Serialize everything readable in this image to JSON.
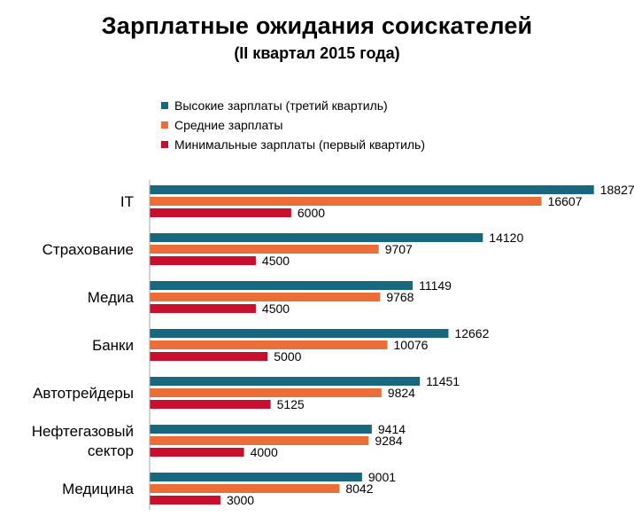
{
  "chart_data": {
    "type": "bar",
    "orientation": "horizontal",
    "title": "Зарплатные ожидания соискателей",
    "subtitle": "(II квартал 2015 года)",
    "categories": [
      [
        "IT"
      ],
      [
        "Страхование"
      ],
      [
        "Медиа"
      ],
      [
        "Банки"
      ],
      [
        "Автотрейдеры"
      ],
      [
        "Нефтегазовый",
        "сектор"
      ],
      [
        "Медицина"
      ]
    ],
    "series": [
      {
        "name": "Высокие зарплаты (третий квартиль)",
        "color": "#17687E",
        "values": [
          18827,
          14120,
          11149,
          12662,
          11451,
          9414,
          9001
        ]
      },
      {
        "name": "Средние зарплаты",
        "color": "#EB6D38",
        "values": [
          16607,
          9707,
          9768,
          10076,
          9824,
          9284,
          8042
        ]
      },
      {
        "name": "Минимальные зарплаты (первый квартиль)",
        "color": "#C8102E",
        "values": [
          6000,
          4500,
          4500,
          5000,
          5125,
          4000,
          3000
        ]
      }
    ],
    "xlim": [
      0,
      20000
    ],
    "axis_line_color": "#A6A6A6",
    "grid": false,
    "legend_position": "top",
    "data_labels": true
  }
}
